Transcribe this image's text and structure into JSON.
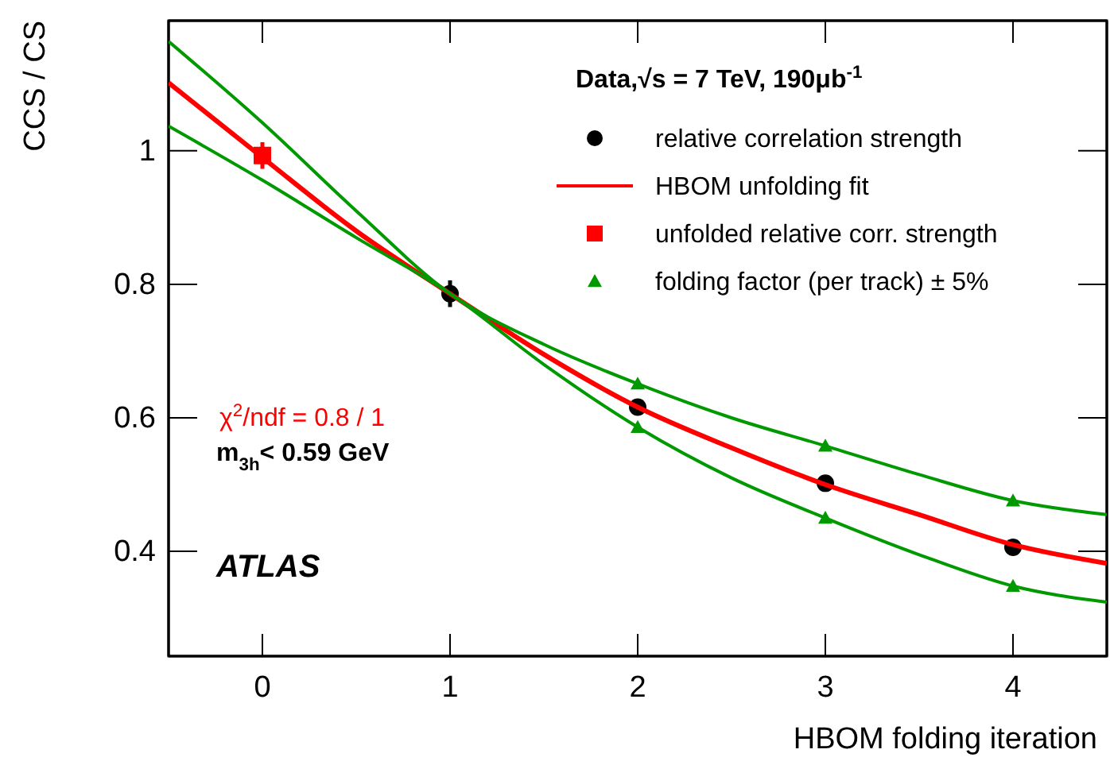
{
  "chart_data": {
    "type": "line",
    "xlabel": "HBOM folding iteration",
    "ylabel": "CCS / CS",
    "legend_title": "Data,√s = 7 TeV, 190μb$^{-1}$",
    "legend": "top right",
    "grid": false,
    "xlim": [
      -0.5,
      4.5
    ],
    "xticks": [
      0,
      1,
      2,
      3,
      4
    ],
    "ylim": [
      0.243,
      1.195
    ],
    "yticks": [
      0.4,
      0.6,
      0.8,
      1
    ],
    "series": [
      {
        "name": "relative correlation strength",
        "type": "scatter",
        "marker": "circle",
        "color": "#000000",
        "x": [
          1,
          2,
          3,
          4
        ],
        "values": [
          0.786,
          0.616,
          0.502,
          0.406
        ],
        "errors": [
          0.02,
          null,
          null,
          null
        ]
      },
      {
        "name": "HBOM unfolding fit",
        "marker": "none",
        "color": "#ff0000",
        "x": [
          -0.5,
          0,
          0.5,
          1,
          1.5,
          2,
          2.5,
          3,
          3.5,
          4,
          4.5
        ],
        "values": [
          1.102,
          0.99,
          0.88,
          0.786,
          0.695,
          0.616,
          0.555,
          0.5,
          0.455,
          0.41,
          0.382
        ]
      },
      {
        "name": "unfolded relative corr. strength",
        "type": "scatter",
        "marker": "square",
        "color": "#ff0000",
        "x": [
          0
        ],
        "values": [
          0.993
        ],
        "errors": [
          0.02
        ]
      },
      {
        "name": "folding factor (per track) ± 5%",
        "type": "scatter",
        "marker": "triangle",
        "color": "#009900",
        "x": [
          2,
          3,
          4,
          2,
          3,
          4
        ],
        "values": [
          0.651,
          0.558,
          0.476,
          0.586,
          0.45,
          0.348
        ]
      },
      {
        "marker": "none",
        "color": "#009900",
        "x": [
          -0.5,
          0,
          0.5,
          1,
          1.5,
          2,
          2.5,
          3,
          3.5,
          4,
          4.5
        ],
        "values": [
          1.164,
          1.042,
          0.91,
          0.786,
          0.71,
          0.651,
          0.6,
          0.558,
          0.515,
          0.476,
          0.455
        ]
      },
      {
        "marker": "none",
        "color": "#009900",
        "x": [
          -0.5,
          0,
          0.5,
          1,
          1.5,
          2,
          2.5,
          3,
          3.5,
          4,
          4.5
        ],
        "values": [
          1.037,
          0.956,
          0.87,
          0.786,
          0.68,
          0.586,
          0.51,
          0.45,
          0.395,
          0.348,
          0.324
        ]
      }
    ],
    "annotations": [
      "χ$^{2}$/ndf = 0.8 / 1",
      "m$_{3h}$< 0.59 GeV",
      "ATLAS"
    ]
  }
}
